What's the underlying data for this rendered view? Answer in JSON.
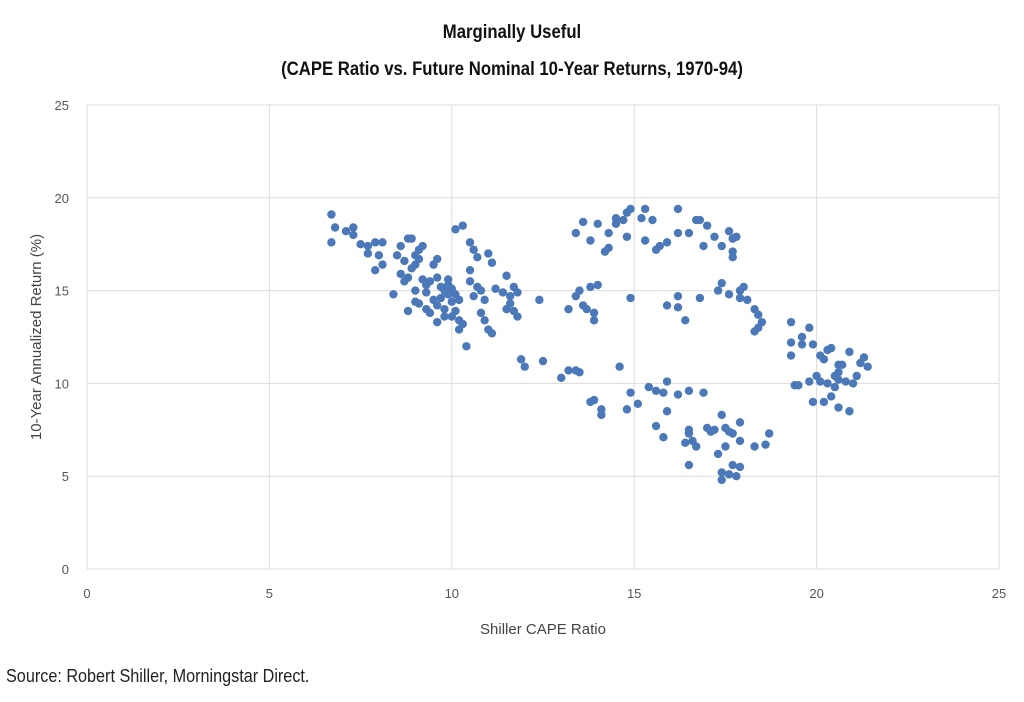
{
  "chart_data": {
    "type": "scatter",
    "title": "Marginally Useful",
    "subtitle": "(CAPE Ratio vs. Future Nominal 10-Year Returns, 1970-94)",
    "xlabel": "Shiller CAPE Ratio",
    "ylabel": "10-Year  Annualized Return (%)",
    "xlim": [
      0,
      25
    ],
    "ylim": [
      0,
      25
    ],
    "xticks": [
      0,
      5,
      10,
      15,
      20,
      25
    ],
    "yticks": [
      0,
      5,
      10,
      15,
      20,
      25
    ],
    "grid": true,
    "marker_color": "#4a78b8",
    "points": [
      [
        6.7,
        19.1
      ],
      [
        6.8,
        18.4
      ],
      [
        6.7,
        17.6
      ],
      [
        7.1,
        18.2
      ],
      [
        7.3,
        18.4
      ],
      [
        7.3,
        18.0
      ],
      [
        7.5,
        17.5
      ],
      [
        7.7,
        17.4
      ],
      [
        7.9,
        17.6
      ],
      [
        8.1,
        17.6
      ],
      [
        7.7,
        17.0
      ],
      [
        8.0,
        16.9
      ],
      [
        7.9,
        16.1
      ],
      [
        8.1,
        16.4
      ],
      [
        8.4,
        14.8
      ],
      [
        8.5,
        16.9
      ],
      [
        8.6,
        17.4
      ],
      [
        8.8,
        17.8
      ],
      [
        8.9,
        17.8
      ],
      [
        8.7,
        16.6
      ],
      [
        8.9,
        16.2
      ],
      [
        9.0,
        16.9
      ],
      [
        9.1,
        17.2
      ],
      [
        9.2,
        17.4
      ],
      [
        9.1,
        16.7
      ],
      [
        9.0,
        16.4
      ],
      [
        8.8,
        15.7
      ],
      [
        8.7,
        15.5
      ],
      [
        8.8,
        13.9
      ],
      [
        9.0,
        14.4
      ],
      [
        9.2,
        15.6
      ],
      [
        9.3,
        15.3
      ],
      [
        9.1,
        14.3
      ],
      [
        9.3,
        14.0
      ],
      [
        9.5,
        14.5
      ],
      [
        9.4,
        13.8
      ],
      [
        9.6,
        15.7
      ],
      [
        9.5,
        16.4
      ],
      [
        9.6,
        16.7
      ],
      [
        9.7,
        15.2
      ],
      [
        9.7,
        14.6
      ],
      [
        9.8,
        13.6
      ],
      [
        9.6,
        13.3
      ],
      [
        9.9,
        15.3
      ],
      [
        9.9,
        14.8
      ],
      [
        10.0,
        15.1
      ],
      [
        10.0,
        14.4
      ],
      [
        10.1,
        13.9
      ],
      [
        10.0,
        13.6
      ],
      [
        10.2,
        13.4
      ],
      [
        10.2,
        12.9
      ],
      [
        10.3,
        13.2
      ],
      [
        10.4,
        12.0
      ],
      [
        10.1,
        18.3
      ],
      [
        10.3,
        18.5
      ],
      [
        10.5,
        17.6
      ],
      [
        10.5,
        16.1
      ],
      [
        10.6,
        17.2
      ],
      [
        10.7,
        16.8
      ],
      [
        10.5,
        15.5
      ],
      [
        10.7,
        15.2
      ],
      [
        10.6,
        14.7
      ],
      [
        10.8,
        15.0
      ],
      [
        10.9,
        14.5
      ],
      [
        10.8,
        13.8
      ],
      [
        10.9,
        13.4
      ],
      [
        11.0,
        12.9
      ],
      [
        11.1,
        12.7
      ],
      [
        11.0,
        17.0
      ],
      [
        11.1,
        16.5
      ],
      [
        11.2,
        15.1
      ],
      [
        11.4,
        14.9
      ],
      [
        11.5,
        15.8
      ],
      [
        11.6,
        14.3
      ],
      [
        11.7,
        15.2
      ],
      [
        11.8,
        14.9
      ],
      [
        11.7,
        13.9
      ],
      [
        11.8,
        13.6
      ],
      [
        11.6,
        14.7
      ],
      [
        11.5,
        14.0
      ],
      [
        9.9,
        15.6
      ],
      [
        9.8,
        14.0
      ],
      [
        10.1,
        14.8
      ],
      [
        9.4,
        15.5
      ],
      [
        9.0,
        15.0
      ],
      [
        8.6,
        15.9
      ],
      [
        9.3,
        14.9
      ],
      [
        9.8,
        15.0
      ],
      [
        10.2,
        14.5
      ],
      [
        9.6,
        14.2
      ],
      [
        12.4,
        14.5
      ],
      [
        11.9,
        11.3
      ],
      [
        12.0,
        10.9
      ],
      [
        12.5,
        11.2
      ],
      [
        13.0,
        10.3
      ],
      [
        13.4,
        18.1
      ],
      [
        13.6,
        18.7
      ],
      [
        13.8,
        17.7
      ],
      [
        14.0,
        18.6
      ],
      [
        14.2,
        17.1
      ],
      [
        14.3,
        17.3
      ],
      [
        14.3,
        18.1
      ],
      [
        14.5,
        18.9
      ],
      [
        14.5,
        18.6
      ],
      [
        14.7,
        18.8
      ],
      [
        14.8,
        19.2
      ],
      [
        14.9,
        19.4
      ],
      [
        14.8,
        17.9
      ],
      [
        15.2,
        18.9
      ],
      [
        15.3,
        19.4
      ],
      [
        15.5,
        18.8
      ],
      [
        15.3,
        17.7
      ],
      [
        15.6,
        17.2
      ],
      [
        15.7,
        17.4
      ],
      [
        15.9,
        17.6
      ],
      [
        16.2,
        19.4
      ],
      [
        16.2,
        18.1
      ],
      [
        16.5,
        18.1
      ],
      [
        16.7,
        18.8
      ],
      [
        16.8,
        18.8
      ],
      [
        17.0,
        18.5
      ],
      [
        16.9,
        17.4
      ],
      [
        17.2,
        17.9
      ],
      [
        17.4,
        17.4
      ],
      [
        17.6,
        18.2
      ],
      [
        17.7,
        17.8
      ],
      [
        17.8,
        17.9
      ],
      [
        17.7,
        17.1
      ],
      [
        17.7,
        16.8
      ],
      [
        13.2,
        14.0
      ],
      [
        13.4,
        14.7
      ],
      [
        13.5,
        15.0
      ],
      [
        13.6,
        14.2
      ],
      [
        13.7,
        14.0
      ],
      [
        13.8,
        15.2
      ],
      [
        14.0,
        15.3
      ],
      [
        13.9,
        13.8
      ],
      [
        13.9,
        13.4
      ],
      [
        14.9,
        14.6
      ],
      [
        15.9,
        14.2
      ],
      [
        16.2,
        14.7
      ],
      [
        16.2,
        14.1
      ],
      [
        16.4,
        13.4
      ],
      [
        16.8,
        14.6
      ],
      [
        17.3,
        15.0
      ],
      [
        17.4,
        15.4
      ],
      [
        17.6,
        14.8
      ],
      [
        17.9,
        14.6
      ],
      [
        17.9,
        15.0
      ],
      [
        18.0,
        15.2
      ],
      [
        18.1,
        14.5
      ],
      [
        18.3,
        14.0
      ],
      [
        18.4,
        13.7
      ],
      [
        18.5,
        13.3
      ],
      [
        18.3,
        12.8
      ],
      [
        18.4,
        13.0
      ],
      [
        19.3,
        13.3
      ],
      [
        19.3,
        12.2
      ],
      [
        19.3,
        11.5
      ],
      [
        19.4,
        9.9
      ],
      [
        19.6,
        12.5
      ],
      [
        19.8,
        13.0
      ],
      [
        19.6,
        12.1
      ],
      [
        19.9,
        12.1
      ],
      [
        20.1,
        11.5
      ],
      [
        20.2,
        11.3
      ],
      [
        20.3,
        11.8
      ],
      [
        20.4,
        11.9
      ],
      [
        20.0,
        10.4
      ],
      [
        20.1,
        10.1
      ],
      [
        20.3,
        10.0
      ],
      [
        20.5,
        10.4
      ],
      [
        20.6,
        11.0
      ],
      [
        20.7,
        11.0
      ],
      [
        20.6,
        10.6
      ],
      [
        20.6,
        10.2
      ],
      [
        20.5,
        9.8
      ],
      [
        20.4,
        9.3
      ],
      [
        20.2,
        9.0
      ],
      [
        20.8,
        10.1
      ],
      [
        20.9,
        11.7
      ],
      [
        21.1,
        10.4
      ],
      [
        21.2,
        11.1
      ],
      [
        21.3,
        11.4
      ],
      [
        21.4,
        10.9
      ],
      [
        21.0,
        10.0
      ],
      [
        19.8,
        10.1
      ],
      [
        19.9,
        9.0
      ],
      [
        20.6,
        8.7
      ],
      [
        20.9,
        8.5
      ],
      [
        19.5,
        9.9
      ],
      [
        13.2,
        10.7
      ],
      [
        13.4,
        10.7
      ],
      [
        13.5,
        10.6
      ],
      [
        14.6,
        10.9
      ],
      [
        13.8,
        9.0
      ],
      [
        13.9,
        9.1
      ],
      [
        14.1,
        8.3
      ],
      [
        14.1,
        8.6
      ],
      [
        14.8,
        8.6
      ],
      [
        15.1,
        8.9
      ],
      [
        14.9,
        9.5
      ],
      [
        15.4,
        9.8
      ],
      [
        15.6,
        9.6
      ],
      [
        15.8,
        9.5
      ],
      [
        15.9,
        10.1
      ],
      [
        16.2,
        9.4
      ],
      [
        16.5,
        9.6
      ],
      [
        16.9,
        9.5
      ],
      [
        15.6,
        7.7
      ],
      [
        15.8,
        7.1
      ],
      [
        15.9,
        8.5
      ],
      [
        16.4,
        6.8
      ],
      [
        16.5,
        7.3
      ],
      [
        16.5,
        7.5
      ],
      [
        16.6,
        6.9
      ],
      [
        16.7,
        6.6
      ],
      [
        16.5,
        5.6
      ],
      [
        17.0,
        7.6
      ],
      [
        17.1,
        7.4
      ],
      [
        17.2,
        7.5
      ],
      [
        17.3,
        6.2
      ],
      [
        17.4,
        8.3
      ],
      [
        17.5,
        7.6
      ],
      [
        17.6,
        7.4
      ],
      [
        17.7,
        7.3
      ],
      [
        17.5,
        6.6
      ],
      [
        17.9,
        7.9
      ],
      [
        17.9,
        6.9
      ],
      [
        18.3,
        6.6
      ],
      [
        18.6,
        6.7
      ],
      [
        18.7,
        7.3
      ],
      [
        17.4,
        5.2
      ],
      [
        17.6,
        5.1
      ],
      [
        17.7,
        5.6
      ],
      [
        17.4,
        4.8
      ],
      [
        17.9,
        5.5
      ],
      [
        17.8,
        5.0
      ]
    ]
  },
  "source": "Source: Robert Shiller, Morningstar Direct."
}
